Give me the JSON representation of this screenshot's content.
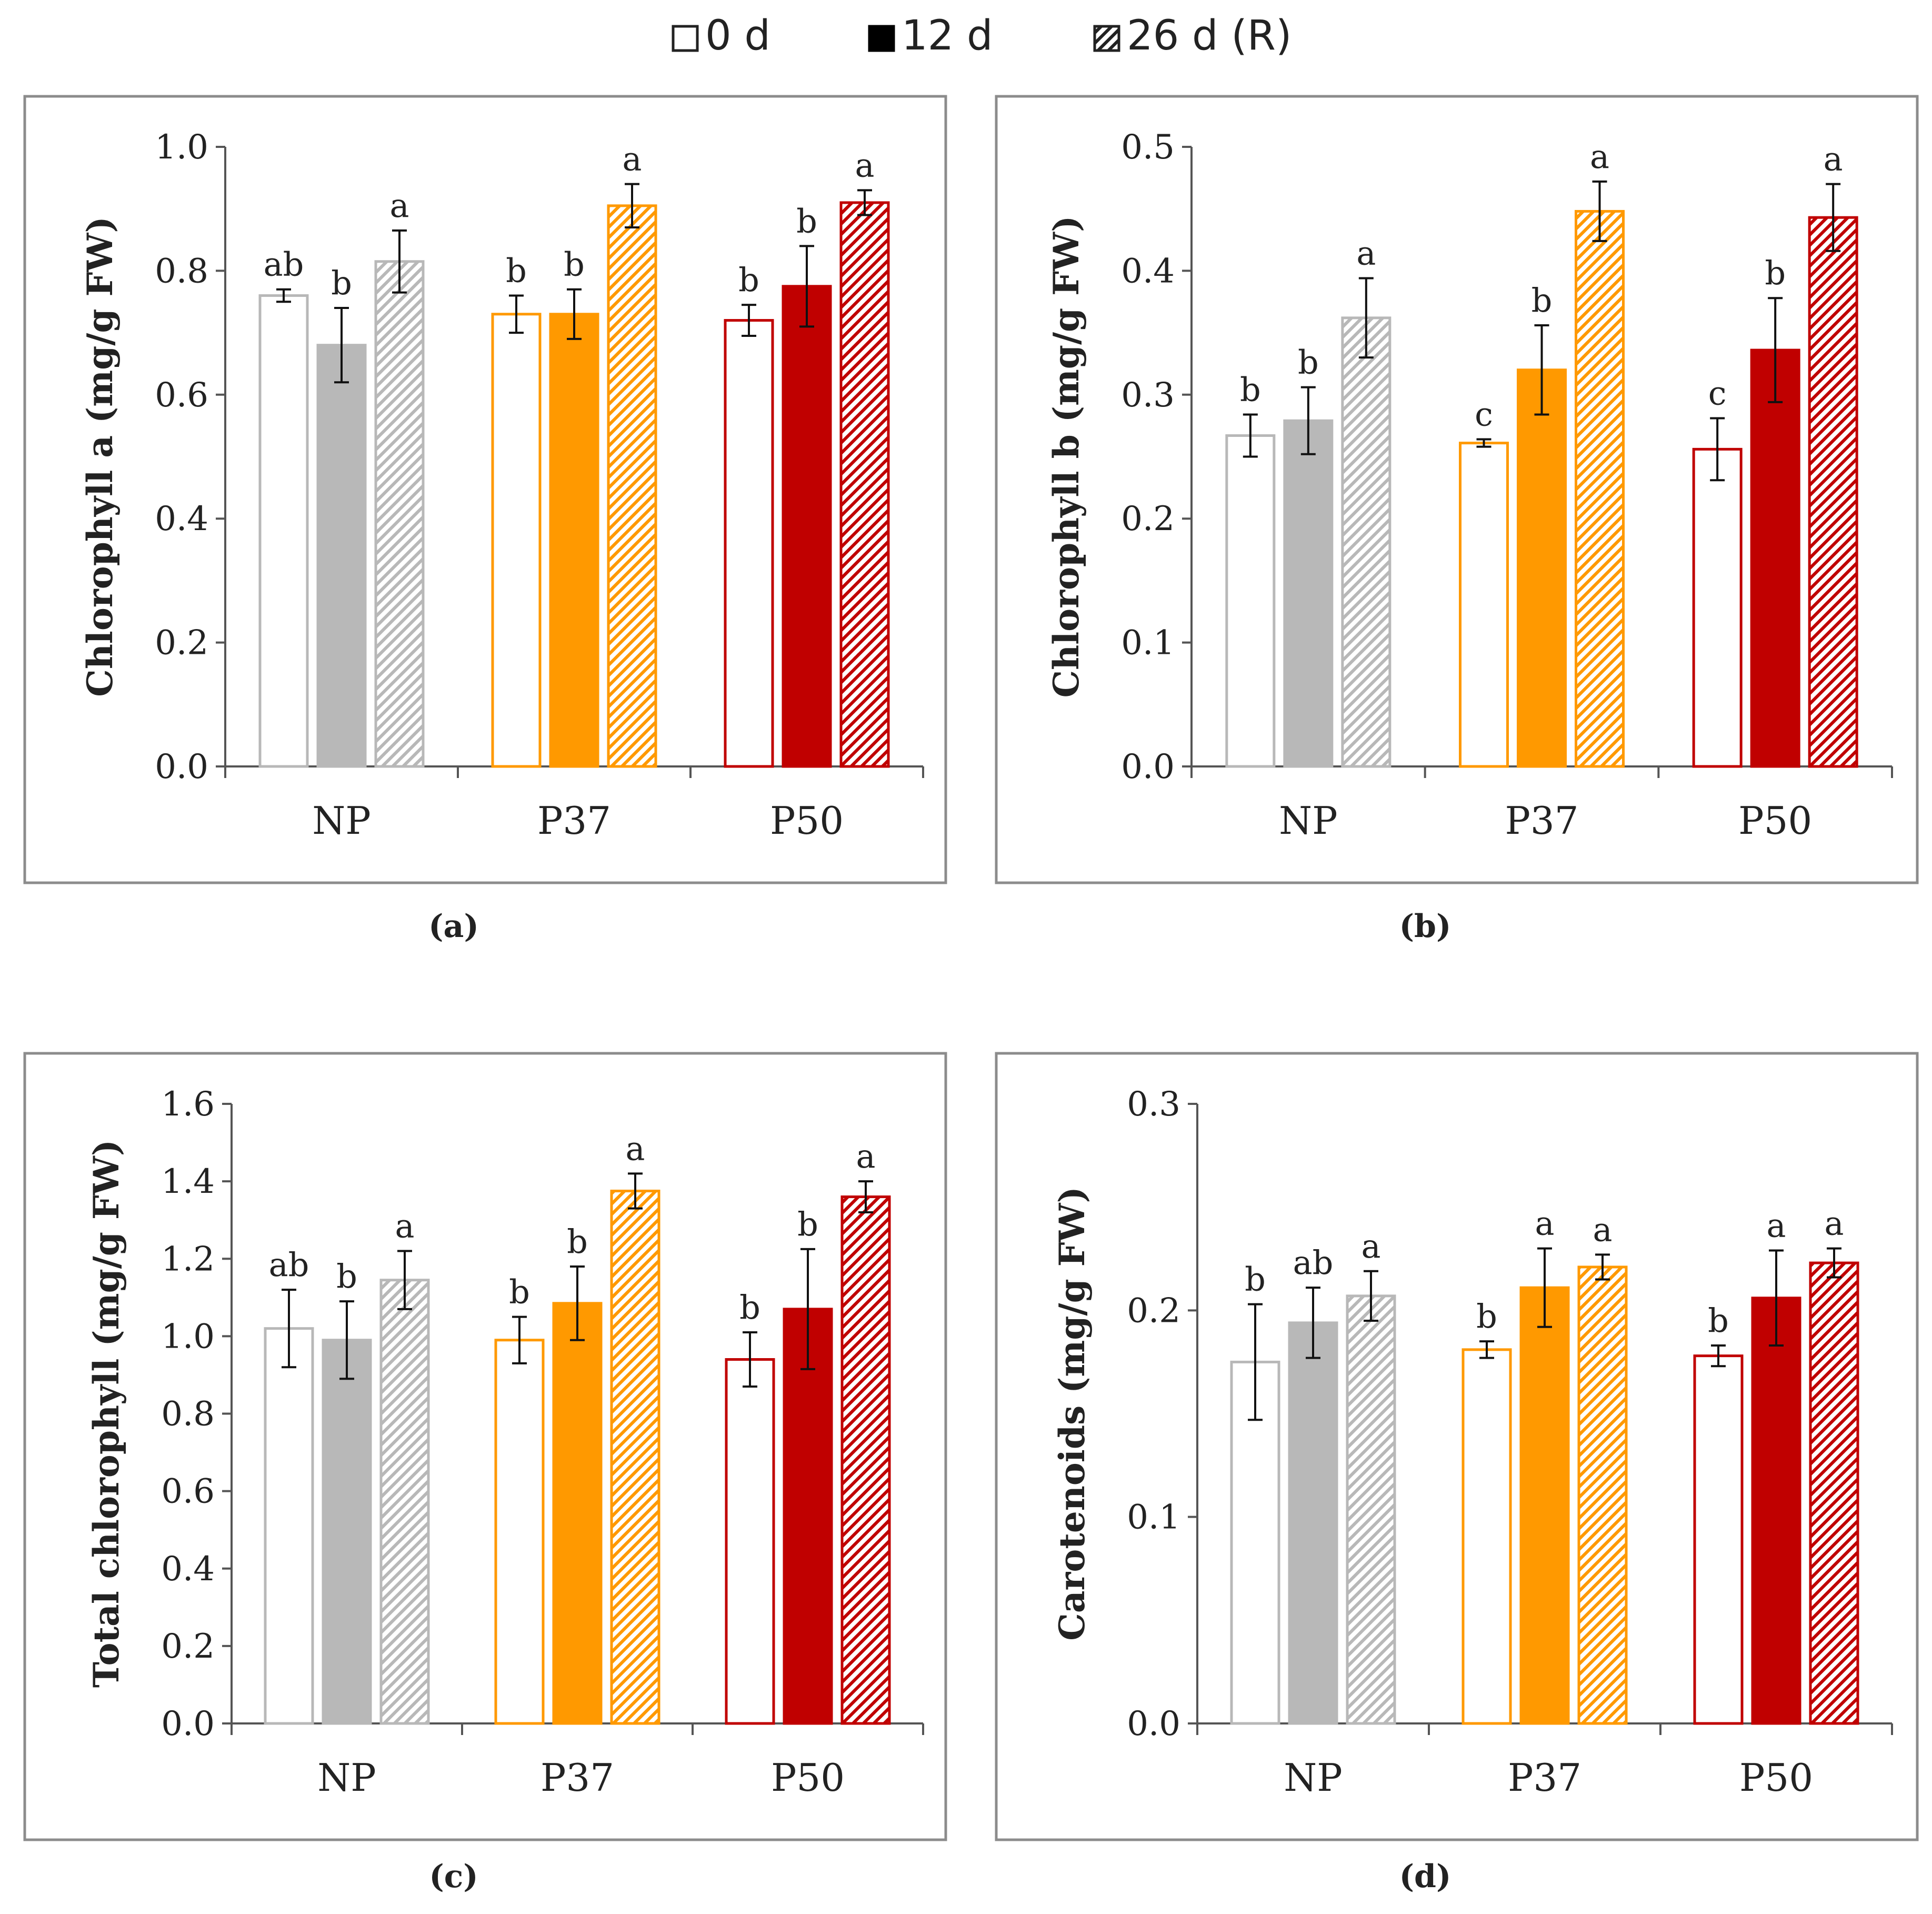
{
  "legend": {
    "items": [
      {
        "label": "0 d",
        "style": "open"
      },
      {
        "label": "12 d",
        "style": "solid"
      },
      {
        "label": "26 d (R)",
        "style": "hatched"
      }
    ]
  },
  "colors": {
    "NP": "#b8b8b8",
    "P37": "#ff9900",
    "P50": "#c00000",
    "axis": "#555555",
    "frame": "#8c8c8c",
    "error": "#111111"
  },
  "chart_data": [
    {
      "id": "a",
      "type": "bar",
      "caption": "(a)",
      "ylabel": "Chlorophyll a (mg/g FW)",
      "ylim": [
        0,
        1.0
      ],
      "yticks": [
        "0.0",
        "0.2",
        "0.4",
        "0.6",
        "0.8",
        "1.0"
      ],
      "categories": [
        "NP",
        "P37",
        "P50"
      ],
      "series": [
        {
          "name": "0 d",
          "values": [
            0.76,
            0.73,
            0.72
          ],
          "errors": [
            0.01,
            0.03,
            0.025
          ],
          "letters": [
            "ab",
            "b",
            "b"
          ]
        },
        {
          "name": "12 d",
          "values": [
            0.68,
            0.73,
            0.775
          ],
          "errors": [
            0.06,
            0.04,
            0.065
          ],
          "letters": [
            "b",
            "b",
            "b"
          ]
        },
        {
          "name": "26 d (R)",
          "values": [
            0.815,
            0.905,
            0.91
          ],
          "errors": [
            0.05,
            0.035,
            0.02
          ],
          "letters": [
            "a",
            "a",
            "a"
          ]
        }
      ]
    },
    {
      "id": "b",
      "type": "bar",
      "caption": "(b)",
      "ylabel": "Chlorophyll b (mg/g FW)",
      "ylim": [
        0,
        0.5
      ],
      "yticks": [
        "0.0",
        "0.1",
        "0.2",
        "0.3",
        "0.4",
        "0.5"
      ],
      "categories": [
        "NP",
        "P37",
        "P50"
      ],
      "series": [
        {
          "name": "0 d",
          "values": [
            0.267,
            0.261,
            0.256
          ],
          "errors": [
            0.017,
            0.003,
            0.025
          ],
          "letters": [
            "b",
            "c",
            "c"
          ]
        },
        {
          "name": "12 d",
          "values": [
            0.279,
            0.32,
            0.336
          ],
          "errors": [
            0.027,
            0.036,
            0.042
          ],
          "letters": [
            "b",
            "b",
            "b"
          ]
        },
        {
          "name": "26 d (R)",
          "values": [
            0.362,
            0.448,
            0.443
          ],
          "errors": [
            0.032,
            0.024,
            0.027
          ],
          "letters": [
            "a",
            "a",
            "a"
          ]
        }
      ]
    },
    {
      "id": "c",
      "type": "bar",
      "caption": "(c)",
      "ylabel": "Total chlorophyll (mg/g FW)",
      "ylim": [
        0,
        1.6
      ],
      "yticks": [
        "0.0",
        "0.2",
        "0.4",
        "0.6",
        "0.8",
        "1.0",
        "1.2",
        "1.4",
        "1.6"
      ],
      "categories": [
        "NP",
        "P37",
        "P50"
      ],
      "series": [
        {
          "name": "0 d",
          "values": [
            1.02,
            0.99,
            0.94
          ],
          "errors": [
            0.1,
            0.06,
            0.07
          ],
          "letters": [
            "ab",
            "b",
            "b"
          ]
        },
        {
          "name": "12 d",
          "values": [
            0.99,
            1.085,
            1.07
          ],
          "errors": [
            0.1,
            0.095,
            0.155
          ],
          "letters": [
            "b",
            "b",
            "b"
          ]
        },
        {
          "name": "26 d (R)",
          "values": [
            1.145,
            1.375,
            1.36
          ],
          "errors": [
            0.075,
            0.045,
            0.04
          ],
          "letters": [
            "a",
            "a",
            "a"
          ]
        }
      ]
    },
    {
      "id": "d",
      "type": "bar",
      "caption": "(d)",
      "ylabel": "Carotenoids (mg/g FW)",
      "ylim": [
        0,
        0.3
      ],
      "yticks": [
        "0.0",
        "0.1",
        "0.2",
        "0.3"
      ],
      "categories": [
        "NP",
        "P37",
        "P50"
      ],
      "series": [
        {
          "name": "0 d",
          "values": [
            0.175,
            0.181,
            0.178
          ],
          "errors": [
            0.028,
            0.004,
            0.005
          ],
          "letters": [
            "b",
            "b",
            "b"
          ]
        },
        {
          "name": "12 d",
          "values": [
            0.194,
            0.211,
            0.206
          ],
          "errors": [
            0.017,
            0.019,
            0.023
          ],
          "letters": [
            "ab",
            "a",
            "a"
          ]
        },
        {
          "name": "26 d (R)",
          "values": [
            0.207,
            0.221,
            0.223
          ],
          "errors": [
            0.012,
            0.006,
            0.007
          ],
          "letters": [
            "a",
            "a",
            "a"
          ]
        }
      ]
    }
  ]
}
